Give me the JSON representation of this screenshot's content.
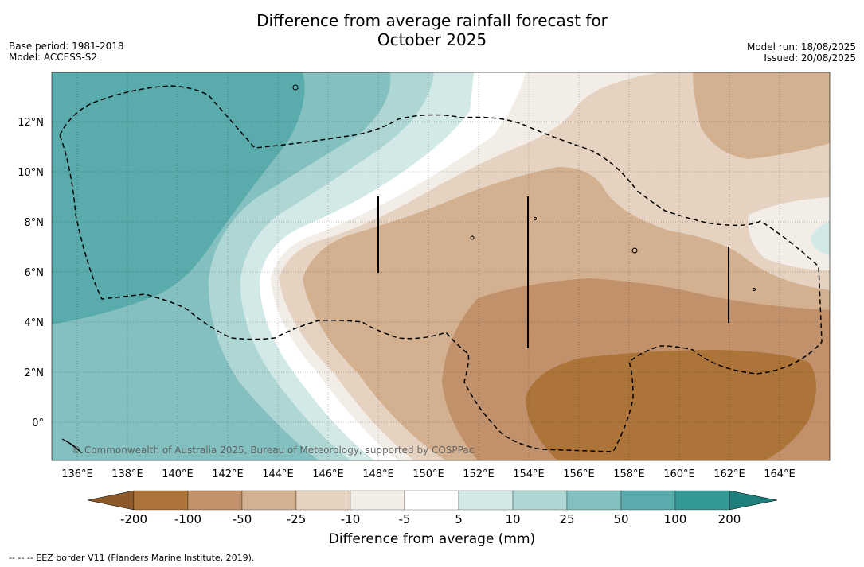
{
  "title_line1": "Difference from average rainfall forecast for",
  "title_line2": "October 2025",
  "meta_left": {
    "base_period": "Base period: 1981-2018",
    "model": "Model: ACCESS-S2"
  },
  "meta_right": {
    "model_run": "Model run: 18/08/2025",
    "issued": "Issued: 20/08/2025"
  },
  "lon_labels": [
    "136°E",
    "138°E",
    "140°E",
    "142°E",
    "144°E",
    "146°E",
    "148°E",
    "150°E",
    "152°E",
    "154°E",
    "156°E",
    "158°E",
    "160°E",
    "162°E",
    "164°E"
  ],
  "lat_labels": [
    "12°N",
    "10°N",
    "8°N",
    "6°N",
    "4°N",
    "2°N",
    "0°"
  ],
  "copyright": "© Commonwealth of Australia 2025, Bureau of Meteorology, supported by COSPPac",
  "legend": {
    "title": "Difference from average (mm)",
    "ticks": [
      "-200",
      "-100",
      "-50",
      "-25",
      "-10",
      "-5",
      "5",
      "10",
      "25",
      "50",
      "100",
      "200"
    ],
    "colors": [
      "#8c5a2a",
      "#ad743a",
      "#c0916a",
      "#d3b08f",
      "#e5d2c0",
      "#f3ede7",
      "#ffffff",
      "#d3e9e8",
      "#aed6d5",
      "#84c0bf",
      "#5aabab",
      "#349995",
      "#1f7f7c"
    ]
  },
  "footnote": "--  --  -- EEZ border V11 (Flanders Marine Institute, 2019)."
}
